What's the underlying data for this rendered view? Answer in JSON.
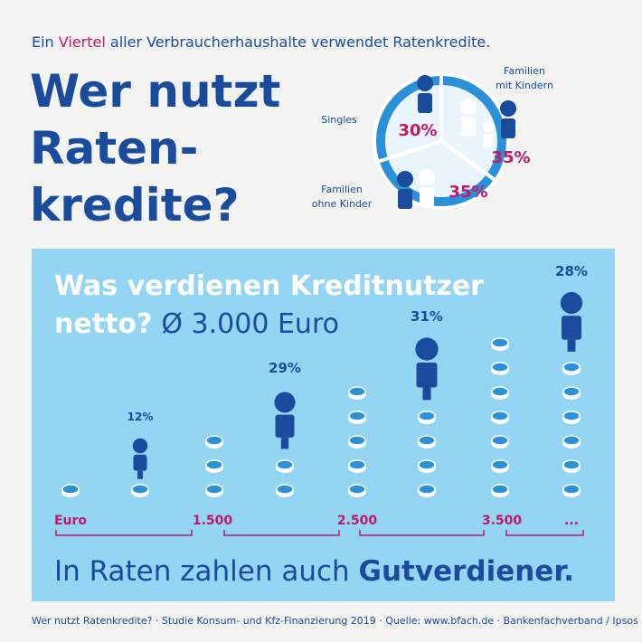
{
  "header": {
    "intro": [
      "Ein ",
      "Viertel",
      " aller Verbraucherhaushalte verwendet Ratenkredite."
    ],
    "title": [
      "Wer nutzt",
      "Raten-",
      "kredite?"
    ]
  },
  "pie": {
    "type": "pie",
    "labels": [
      "Familien mit Kindern",
      "Familien ohne Kinder",
      "Singles"
    ],
    "label_lines": [
      [
        "Familien",
        "mit Kindern"
      ],
      [
        "Familien",
        "ohne Kinder"
      ],
      [
        "Singles"
      ]
    ],
    "values": [
      35,
      35,
      30
    ],
    "value_labels": [
      "35%",
      "35%",
      "30%"
    ]
  },
  "income": {
    "heading": [
      "Was verdienen Kreditnutzer",
      "netto?",
      "Ø 3.000 Euro"
    ],
    "shares": [
      "12%",
      "29%",
      "31%",
      "28%"
    ],
    "scale": [
      "Euro",
      "1.500",
      "2.500",
      "3.500",
      "..."
    ],
    "conclusion": [
      "In Raten zahlen auch ",
      "Gutverdiener."
    ]
  },
  "footer": "Wer nutzt Ratenkredite? · Studie Konsum- und Kfz-Finanzierung 2019 · Quelle: www.bfach.de · Bankenfachverband / Ipsos"
}
